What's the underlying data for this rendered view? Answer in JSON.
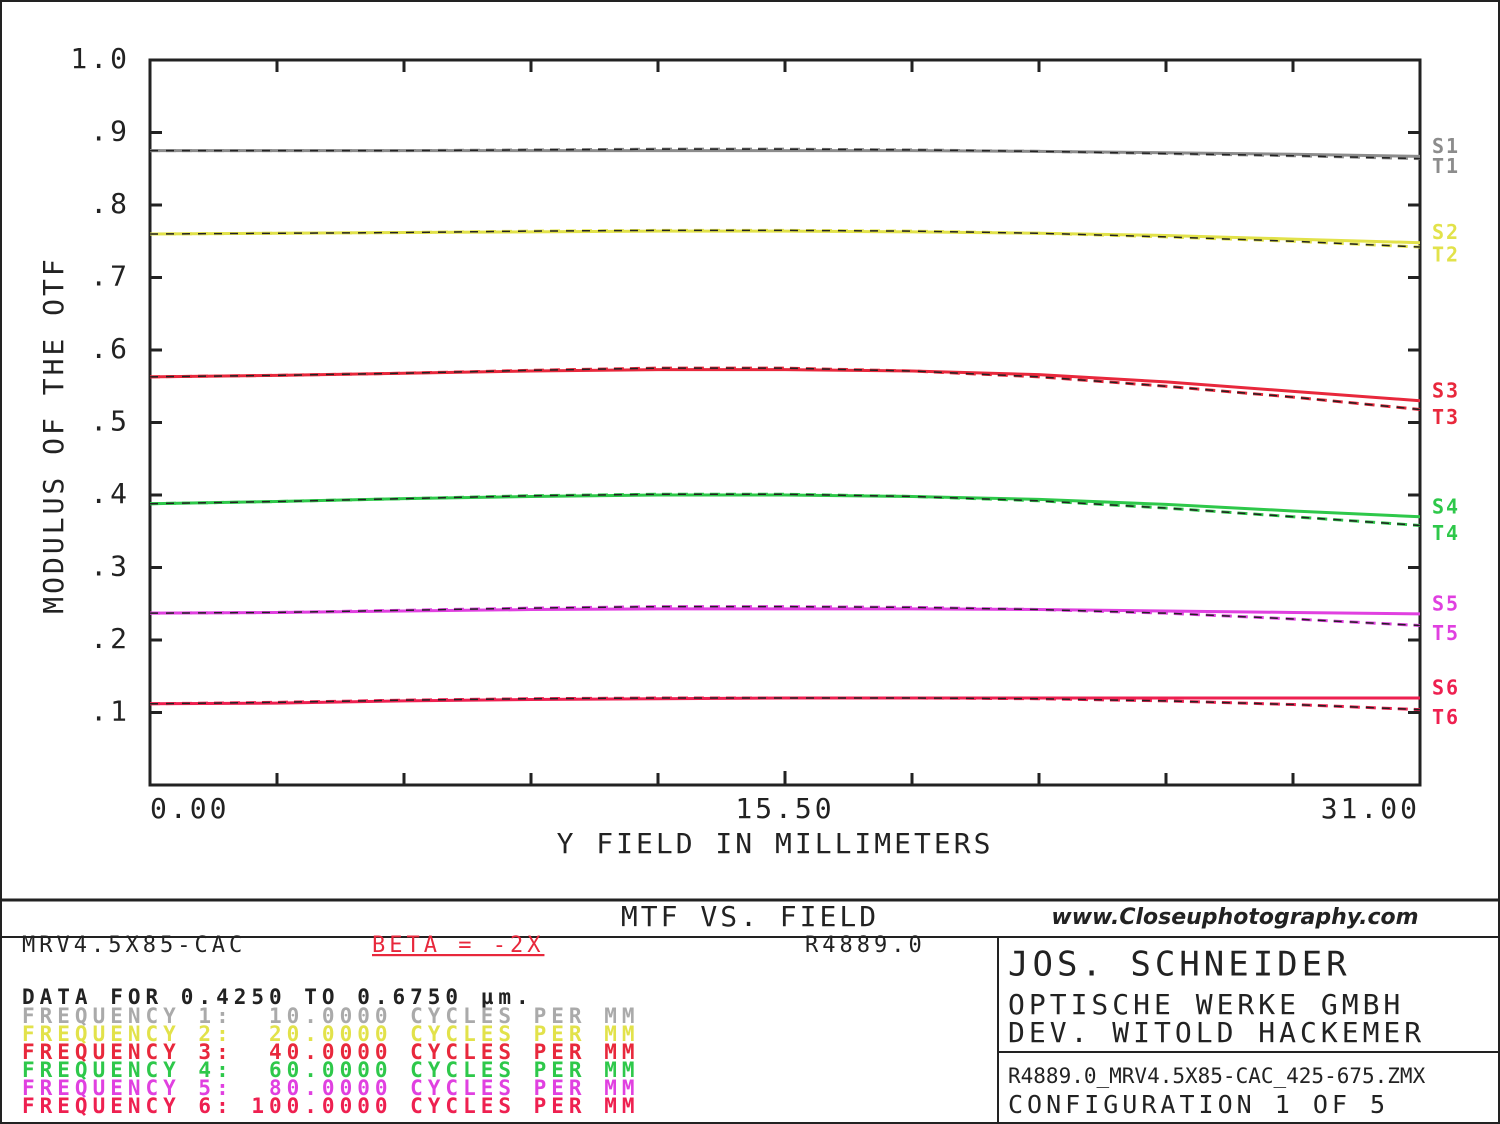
{
  "chart_data": {
    "type": "line",
    "x_label": "Y FIELD IN MILLIMETERS",
    "y_label": "MODULUS OF THE OTF",
    "xlim": [
      0,
      31
    ],
    "ylim": [
      0,
      1
    ],
    "xticks": [
      {
        "value": 0,
        "label": "0.00"
      },
      {
        "value": 15.5,
        "label": "15.50"
      },
      {
        "value": 31,
        "label": "31.00"
      }
    ],
    "yticks": [
      {
        "value": 1,
        "label": "1.0"
      },
      {
        "value": 0.9,
        "label": ".9"
      },
      {
        "value": 0.8,
        "label": ".8"
      },
      {
        "value": 0.7,
        "label": ".7"
      },
      {
        "value": 0.6,
        "label": ".6"
      },
      {
        "value": 0.5,
        "label": ".5"
      },
      {
        "value": 0.4,
        "label": ".4"
      },
      {
        "value": 0.3,
        "label": ".3"
      },
      {
        "value": 0.2,
        "label": ".2"
      },
      {
        "value": 0.1,
        "label": ".1"
      }
    ],
    "x": [
      0,
      3.1,
      6.2,
      9.3,
      12.4,
      15.5,
      18.6,
      21.7,
      24.8,
      27.9,
      31
    ],
    "series": [
      {
        "name": "S1",
        "color": "#8c8c8c",
        "dashed": false,
        "values": [
          0.875,
          0.875,
          0.875,
          0.875,
          0.875,
          0.875,
          0.875,
          0.874,
          0.872,
          0.87,
          0.867
        ]
      },
      {
        "name": "T1",
        "color": "#8c8c8c",
        "dashed": true,
        "values": [
          0.875,
          0.875,
          0.875,
          0.876,
          0.877,
          0.877,
          0.876,
          0.874,
          0.871,
          0.868,
          0.864
        ]
      },
      {
        "name": "S2",
        "color": "#e2e24a",
        "dashed": false,
        "values": [
          0.76,
          0.761,
          0.762,
          0.763,
          0.764,
          0.764,
          0.763,
          0.761,
          0.758,
          0.753,
          0.748
        ]
      },
      {
        "name": "T2",
        "color": "#e2e24a",
        "dashed": true,
        "values": [
          0.76,
          0.761,
          0.762,
          0.764,
          0.765,
          0.765,
          0.764,
          0.761,
          0.756,
          0.75,
          0.742
        ]
      },
      {
        "name": "S3",
        "color": "#e8283c",
        "dashed": false,
        "values": [
          0.563,
          0.565,
          0.568,
          0.571,
          0.573,
          0.573,
          0.571,
          0.566,
          0.556,
          0.543,
          0.53
        ]
      },
      {
        "name": "T3",
        "color": "#e8283c",
        "dashed": true,
        "values": [
          0.563,
          0.565,
          0.568,
          0.572,
          0.575,
          0.575,
          0.571,
          0.563,
          0.55,
          0.535,
          0.518
        ]
      },
      {
        "name": "S4",
        "color": "#2ec84a",
        "dashed": false,
        "values": [
          0.388,
          0.391,
          0.395,
          0.398,
          0.4,
          0.4,
          0.398,
          0.394,
          0.387,
          0.378,
          0.37
        ]
      },
      {
        "name": "T4",
        "color": "#2ec84a",
        "dashed": true,
        "values": [
          0.388,
          0.391,
          0.395,
          0.399,
          0.401,
          0.401,
          0.398,
          0.392,
          0.382,
          0.37,
          0.358
        ]
      },
      {
        "name": "S5",
        "color": "#e040e0",
        "dashed": false,
        "values": [
          0.237,
          0.238,
          0.24,
          0.242,
          0.243,
          0.243,
          0.243,
          0.242,
          0.24,
          0.238,
          0.236
        ]
      },
      {
        "name": "T5",
        "color": "#e040e0",
        "dashed": true,
        "values": [
          0.237,
          0.238,
          0.241,
          0.244,
          0.246,
          0.246,
          0.245,
          0.242,
          0.237,
          0.229,
          0.22
        ]
      },
      {
        "name": "S6",
        "color": "#ee2050",
        "dashed": false,
        "values": [
          0.112,
          0.113,
          0.116,
          0.118,
          0.119,
          0.12,
          0.12,
          0.12,
          0.12,
          0.12,
          0.12
        ]
      },
      {
        "name": "T6",
        "color": "#ee2050",
        "dashed": true,
        "values": [
          0.112,
          0.114,
          0.117,
          0.119,
          0.12,
          0.12,
          0.12,
          0.119,
          0.116,
          0.111,
          0.104
        ]
      }
    ]
  },
  "footer": {
    "title": "MTF VS. FIELD",
    "watermark": "www.Closeuphotography.com",
    "lens": "MRV4.5X85-CAC",
    "beta": "BETA = -2X",
    "ref": "R4889.0",
    "data_range": "DATA FOR 0.4250 TO 0.6750 µm.",
    "frequencies": [
      {
        "text": "FREQUENCY 1:  10.0000 CYCLES PER MM",
        "color": "#aaaaaa"
      },
      {
        "text": "FREQUENCY 2:  20.0000 CYCLES PER MM",
        "color": "#e2e24a"
      },
      {
        "text": "FREQUENCY 3:  40.0000 CYCLES PER MM",
        "color": "#e8283c"
      },
      {
        "text": "FREQUENCY 4:  60.0000 CYCLES PER MM",
        "color": "#2ec84a"
      },
      {
        "text": "FREQUENCY 5:  80.0000 CYCLES PER MM",
        "color": "#e040e0"
      },
      {
        "text": "FREQUENCY 6: 100.0000 CYCLES PER MM",
        "color": "#ee2050"
      }
    ],
    "company": [
      "JOS. SCHNEIDER",
      "OPTISCHE WERKE GMBH",
      "DEV. WITOLD HACKEMER"
    ],
    "file": "R4889.0_MRV4.5X85-CAC_425-675.ZMX",
    "configuration": "CONFIGURATION 1 OF 5"
  }
}
